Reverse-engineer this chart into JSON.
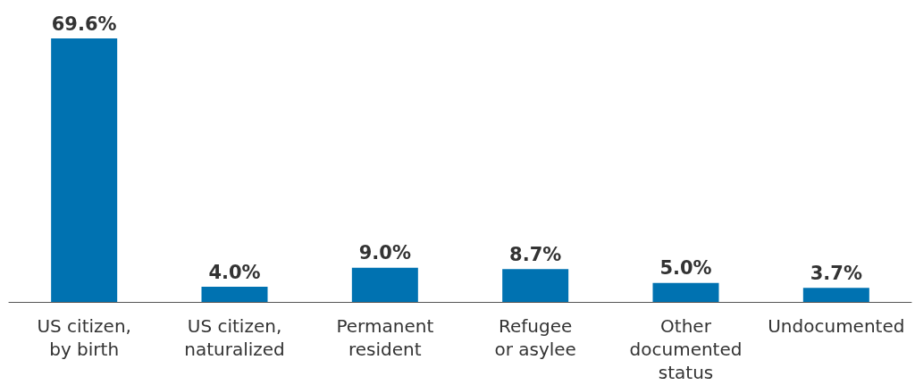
{
  "chart_data": {
    "type": "bar",
    "categories": [
      "US citizen,\nby birth",
      "US citizen,\nnaturalized",
      "Permanent\nresident",
      "Refugee\nor asylee",
      "Other\ndocumented\nstatus",
      "Undocumented"
    ],
    "values": [
      69.6,
      4.0,
      9.0,
      8.7,
      5.0,
      3.7
    ],
    "value_labels": [
      "69.6%",
      "4.0%",
      "9.0%",
      "8.7%",
      "5.0%",
      "3.7%"
    ],
    "color": "#0072b1"
  }
}
